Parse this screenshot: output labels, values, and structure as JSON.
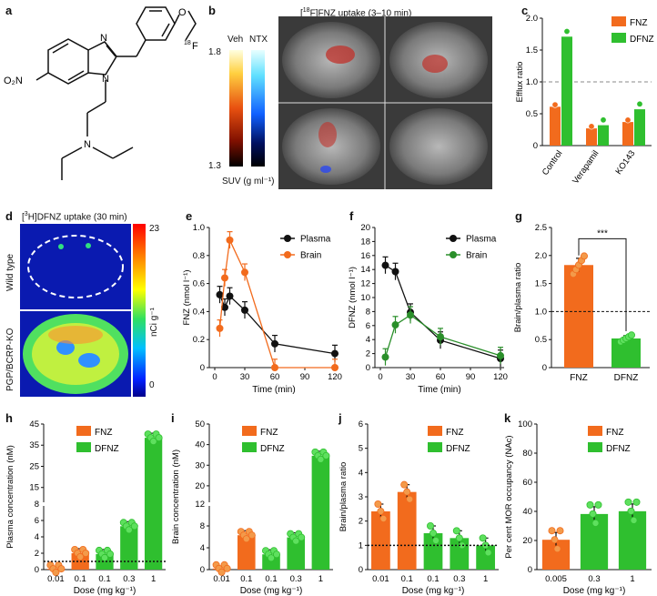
{
  "panels": {
    "a": {
      "letter": "a",
      "o2n": "O₂N",
      "label_18f": "18",
      "label_F": "F",
      "label_N": "N",
      "label_N2": "N",
      "label_N3": "N",
      "label_O": "O"
    },
    "b": {
      "letter": "b",
      "title_pre": "[",
      "title_iso": "18",
      "title_post": "F]FNZ uptake (3–10 min)",
      "scale_top": "1.8",
      "scale_bottom": "1.3",
      "col_veh": "Veh",
      "col_ntx": "NTX",
      "unit": "SUV (g ml⁻¹)"
    },
    "c": {
      "letter": "c"
    },
    "d": {
      "letter": "d",
      "title_pre": "[",
      "title_iso": "3",
      "title_post": "H]DFNZ uptake (30 min)",
      "row1": "Wild type",
      "row2": "PGP/BCRP-KO",
      "scale_top": "23",
      "scale_bottom": "0",
      "unit": "nCi g⁻¹"
    },
    "e": {
      "letter": "e"
    },
    "f": {
      "letter": "f"
    },
    "g": {
      "letter": "g"
    },
    "h": {
      "letter": "h"
    },
    "i": {
      "letter": "i"
    },
    "j": {
      "letter": "j"
    },
    "k": {
      "letter": "k"
    }
  },
  "colors": {
    "fnz": "#f26b1d",
    "dfnz": "#2fbf2f",
    "plasma": "#111111",
    "brain_e": "#f26b1d",
    "brain_f": "#2a8f2a",
    "dfnz_point": "#5ee05e",
    "fnz_point": "#f39a4a"
  },
  "chart_data": [
    {
      "id": "c",
      "type": "bar",
      "categories": [
        "Control",
        "Verapamil",
        "KO143"
      ],
      "series": [
        {
          "name": "FNZ",
          "values": [
            0.61,
            0.27,
            0.37
          ]
        },
        {
          "name": "DFNZ",
          "values": [
            1.71,
            0.32,
            0.57
          ]
        }
      ],
      "ylabel": "Efflux ratio",
      "ylim": [
        0,
        2.0
      ],
      "yticks": [
        "0",
        "0.5",
        "1.0",
        "1.5",
        "2.0"
      ],
      "ref_line": 1.0,
      "legend": "top-right"
    },
    {
      "id": "e",
      "type": "line",
      "xlabel": "Time (min)",
      "ylabel": "FNZ (nmol l⁻¹)",
      "xlim": [
        0,
        120
      ],
      "ylim": [
        0,
        1.0
      ],
      "xticks": [
        "0",
        "30",
        "60",
        "90",
        "120"
      ],
      "yticks": [
        "0",
        "0.2",
        "0.4",
        "0.6",
        "0.8",
        "1.0"
      ],
      "series": [
        {
          "name": "Plasma",
          "x": [
            5,
            10,
            15,
            30,
            60,
            120
          ],
          "y": [
            0.52,
            0.43,
            0.51,
            0.41,
            0.17,
            0.1
          ]
        },
        {
          "name": "Brain",
          "x": [
            5,
            10,
            15,
            30,
            60,
            120
          ],
          "y": [
            0.28,
            0.64,
            0.91,
            0.68,
            0.0,
            0.0
          ]
        }
      ],
      "legend": "top-right"
    },
    {
      "id": "f",
      "type": "line",
      "xlabel": "Time (min)",
      "ylabel": "DFNZ (nmol l⁻¹)",
      "xlim": [
        0,
        120
      ],
      "ylim": [
        0,
        20
      ],
      "xticks": [
        "0",
        "30",
        "60",
        "90",
        "120"
      ],
      "yticks": [
        "0",
        "2",
        "4",
        "6",
        "8",
        "10",
        "12",
        "14",
        "16",
        "18",
        "20"
      ],
      "series": [
        {
          "name": "Plasma",
          "x": [
            5,
            15,
            30,
            60,
            120
          ],
          "y": [
            14.6,
            13.7,
            7.9,
            3.9,
            1.3
          ]
        },
        {
          "name": "Brain",
          "x": [
            5,
            15,
            30,
            60,
            120
          ],
          "y": [
            1.5,
            6.1,
            7.5,
            4.4,
            1.7
          ]
        }
      ],
      "legend": "top-right"
    },
    {
      "id": "g",
      "type": "bar",
      "categories": [
        "FNZ",
        "DFNZ"
      ],
      "values": [
        1.83,
        0.52
      ],
      "ylabel": "Brain/plasma ratio",
      "ylim": [
        0,
        2.5
      ],
      "yticks": [
        "0",
        "0.5",
        "1.0",
        "1.5",
        "2.0",
        "2.5"
      ],
      "ref_line": 1.0,
      "annotation": "***"
    },
    {
      "id": "h",
      "type": "bar",
      "categories": [
        "0.01",
        "0.1",
        "0.1",
        "0.3",
        "1"
      ],
      "groups": [
        "FNZ",
        "FNZ",
        "DFNZ",
        "DFNZ",
        "DFNZ"
      ],
      "values": [
        0.1,
        2.0,
        1.9,
        5.3,
        38.5
      ],
      "xlabel": "Dose (mg kg⁻¹)",
      "ylabel": "Plasma concentration (nM)",
      "yticks": [
        "0",
        "2",
        "4",
        "6",
        "8",
        "15",
        "25",
        "35",
        "45"
      ],
      "ref_line": 1.0,
      "legend": "top-left"
    },
    {
      "id": "i",
      "type": "bar",
      "categories": [
        "0.01",
        "0.1",
        "0.1",
        "0.3",
        "1"
      ],
      "groups": [
        "FNZ",
        "FNZ",
        "DFNZ",
        "DFNZ",
        "DFNZ"
      ],
      "values": [
        0.2,
        6.3,
        2.8,
        5.9,
        34.6
      ],
      "xlabel": "Dose (mg kg⁻¹)",
      "ylabel": "Brain concentration (nM)",
      "yticks": [
        "0",
        "4",
        "8",
        "12",
        "20",
        "30",
        "40",
        "50"
      ],
      "legend": "top-left"
    },
    {
      "id": "j",
      "type": "bar",
      "categories": [
        "0.01",
        "0.1",
        "0.1",
        "0.3",
        "1"
      ],
      "groups": [
        "FNZ",
        "FNZ",
        "DFNZ",
        "DFNZ",
        "DFNZ"
      ],
      "values": [
        2.4,
        3.2,
        1.5,
        1.3,
        1.0
      ],
      "xlabel": "Dose (mg kg⁻¹)",
      "ylabel": "Brain/plasma ratio",
      "ylim": [
        0,
        6
      ],
      "yticks": [
        "0",
        "1",
        "2",
        "3",
        "4",
        "5",
        "6"
      ],
      "ref_line": 1.0,
      "legend": "top-right"
    },
    {
      "id": "k",
      "type": "bar",
      "categories": [
        "0.005",
        "0.3",
        "1"
      ],
      "groups": [
        "FNZ",
        "DFNZ",
        "DFNZ"
      ],
      "values": [
        20.5,
        38.2,
        40.1
      ],
      "xlabel": "Dose (mg kg⁻¹)",
      "ylabel": "Per cent MOR occupancy (NAc)",
      "ylim": [
        0,
        100
      ],
      "yticks": [
        "0",
        "20",
        "40",
        "60",
        "80",
        "100"
      ],
      "legend": "top-right"
    }
  ],
  "legend": {
    "fnz": "FNZ",
    "dfnz": "DFNZ",
    "plasma": "Plasma",
    "brain": "Brain"
  }
}
